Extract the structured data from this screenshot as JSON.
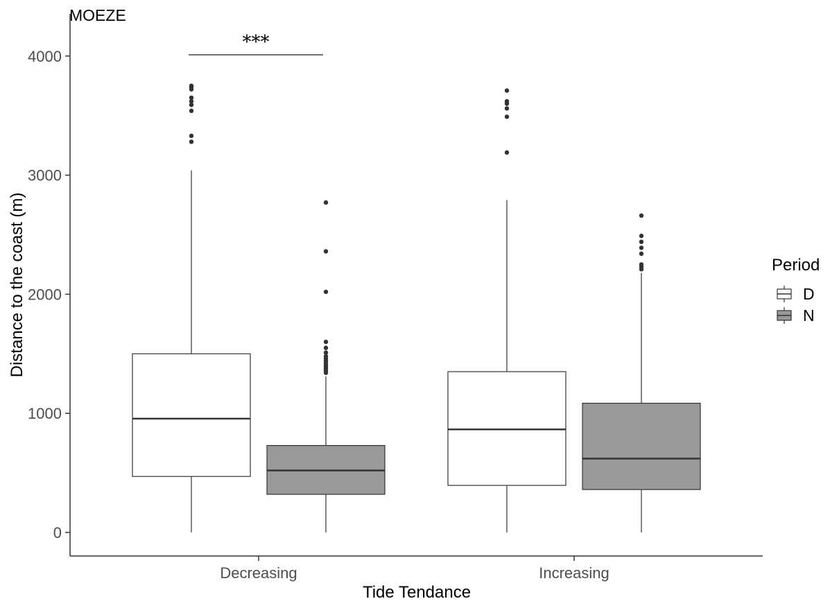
{
  "chart_data": {
    "type": "boxplot",
    "title": "MOEZE",
    "xlabel": "Tide Tendance",
    "ylabel": "Distance to the coast (m)",
    "ylim": [
      -200,
      4200
    ],
    "yticks": [
      0,
      1000,
      2000,
      3000,
      4000
    ],
    "categories": [
      "Decreasing",
      "Increasing"
    ],
    "legend": {
      "title": "Period",
      "position": "right",
      "entries": [
        "D",
        "N"
      ]
    },
    "colors": {
      "D": "#ffffff",
      "N": "#999999",
      "outline": "#333333",
      "axis": "#333333"
    },
    "grid": false,
    "series": [
      {
        "name": "D",
        "boxes": [
          {
            "category": "Decreasing",
            "min": 0,
            "q1": 470,
            "median": 955,
            "q3": 1500,
            "max": 3040,
            "outliers": [
              3280,
              3330,
              3540,
              3590,
              3620,
              3650,
              3720,
              3740,
              3750
            ]
          },
          {
            "category": "Increasing",
            "min": 0,
            "q1": 395,
            "median": 865,
            "q3": 1350,
            "max": 2790,
            "outliers": [
              3190,
              3490,
              3560,
              3600,
              3620,
              3710
            ]
          }
        ]
      },
      {
        "name": "N",
        "boxes": [
          {
            "category": "Decreasing",
            "min": 0,
            "q1": 320,
            "median": 520,
            "q3": 730,
            "max": 1310,
            "outliers": [
              1340,
              1355,
              1370,
              1385,
              1400,
              1420,
              1440,
              1460,
              1480,
              1510,
              1550,
              1600,
              2020,
              2360,
              2770
            ]
          },
          {
            "category": "Increasing",
            "min": 0,
            "q1": 360,
            "median": 620,
            "q3": 1085,
            "max": 2180,
            "outliers": [
              2210,
              2230,
              2250,
              2340,
              2390,
              2440,
              2490,
              2660
            ]
          }
        ]
      }
    ],
    "annotations": [
      {
        "text": "***",
        "category": "Decreasing",
        "between": [
          "D",
          "N"
        ],
        "y": 4010
      }
    ]
  }
}
